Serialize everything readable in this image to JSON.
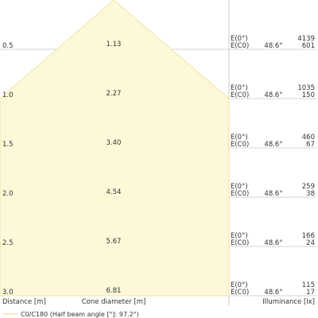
{
  "chart_data": {
    "type": "cone",
    "columns": {
      "distance": "Distance [m]",
      "diameter": "Cone diameter [m]",
      "illuminance": "Illuminance [lx]"
    },
    "legend": {
      "series": "C0/C180 (Half beam angle [°]: 97.2°)",
      "color": "#f6d3a6"
    },
    "angle_label": "48.6°",
    "label_e0": "E(0°)",
    "label_ec0": "E(C0)",
    "rows": [
      {
        "distance": "0.5",
        "diameter": "1.13",
        "e0": "4139",
        "ec0": "601"
      },
      {
        "distance": "1.0",
        "diameter": "2.27",
        "e0": "1035",
        "ec0": "150"
      },
      {
        "distance": "1.5",
        "diameter": "3.40",
        "e0": "460",
        "ec0": "67"
      },
      {
        "distance": "2.0",
        "diameter": "4.54",
        "e0": "259",
        "ec0": "38"
      },
      {
        "distance": "2.5",
        "diameter": "5.67",
        "e0": "166",
        "ec0": "24"
      },
      {
        "distance": "3.0",
        "diameter": "6.81",
        "e0": "115",
        "ec0": "17"
      }
    ],
    "colors": {
      "fill": "#fdf8d8",
      "stroke": "#f0e3a5",
      "grid": "#c8c8c8",
      "text": "#333333"
    }
  }
}
